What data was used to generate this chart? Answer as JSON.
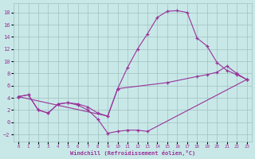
{
  "xlabel": "Windchill (Refroidissement éolien,°C)",
  "bg_color": "#c8e8e8",
  "grid_color": "#a0c0c0",
  "line_color": "#993399",
  "xlim_min": -0.5,
  "xlim_max": 23.5,
  "ylim_min": -3.2,
  "ylim_max": 19.5,
  "xticks": [
    0,
    1,
    2,
    3,
    4,
    5,
    6,
    7,
    8,
    9,
    10,
    11,
    12,
    13,
    14,
    15,
    16,
    17,
    18,
    19,
    20,
    21,
    22,
    23
  ],
  "yticks": [
    -2,
    0,
    2,
    4,
    6,
    8,
    10,
    12,
    14,
    16,
    18
  ],
  "curve1_x": [
    0,
    1,
    2,
    3,
    4,
    5,
    6,
    7,
    8,
    9,
    10,
    11,
    12,
    13,
    14,
    15,
    16,
    17,
    18,
    19,
    20,
    21,
    22,
    23
  ],
  "curve1_y": [
    4.2,
    4.5,
    2.0,
    1.5,
    3.0,
    3.2,
    3.0,
    2.5,
    1.5,
    1.0,
    5.5,
    9.0,
    12.0,
    14.5,
    17.2,
    18.2,
    18.3,
    18.0,
    13.8,
    12.5,
    9.8,
    8.5,
    7.8,
    7.0
  ],
  "curve2_x": [
    0,
    9,
    10,
    15,
    18,
    19,
    20,
    21,
    22,
    23
  ],
  "curve2_y": [
    4.2,
    1.0,
    5.5,
    6.5,
    7.5,
    7.8,
    8.2,
    9.2,
    8.0,
    7.0
  ],
  "curve3_x": [
    0,
    1,
    2,
    3,
    4,
    5,
    6,
    7,
    8,
    9,
    10,
    11,
    12,
    13,
    23
  ],
  "curve3_y": [
    4.2,
    4.5,
    2.0,
    1.5,
    3.0,
    3.2,
    2.8,
    2.0,
    0.5,
    -1.8,
    -1.5,
    -1.3,
    -1.3,
    -1.5,
    7.0
  ]
}
